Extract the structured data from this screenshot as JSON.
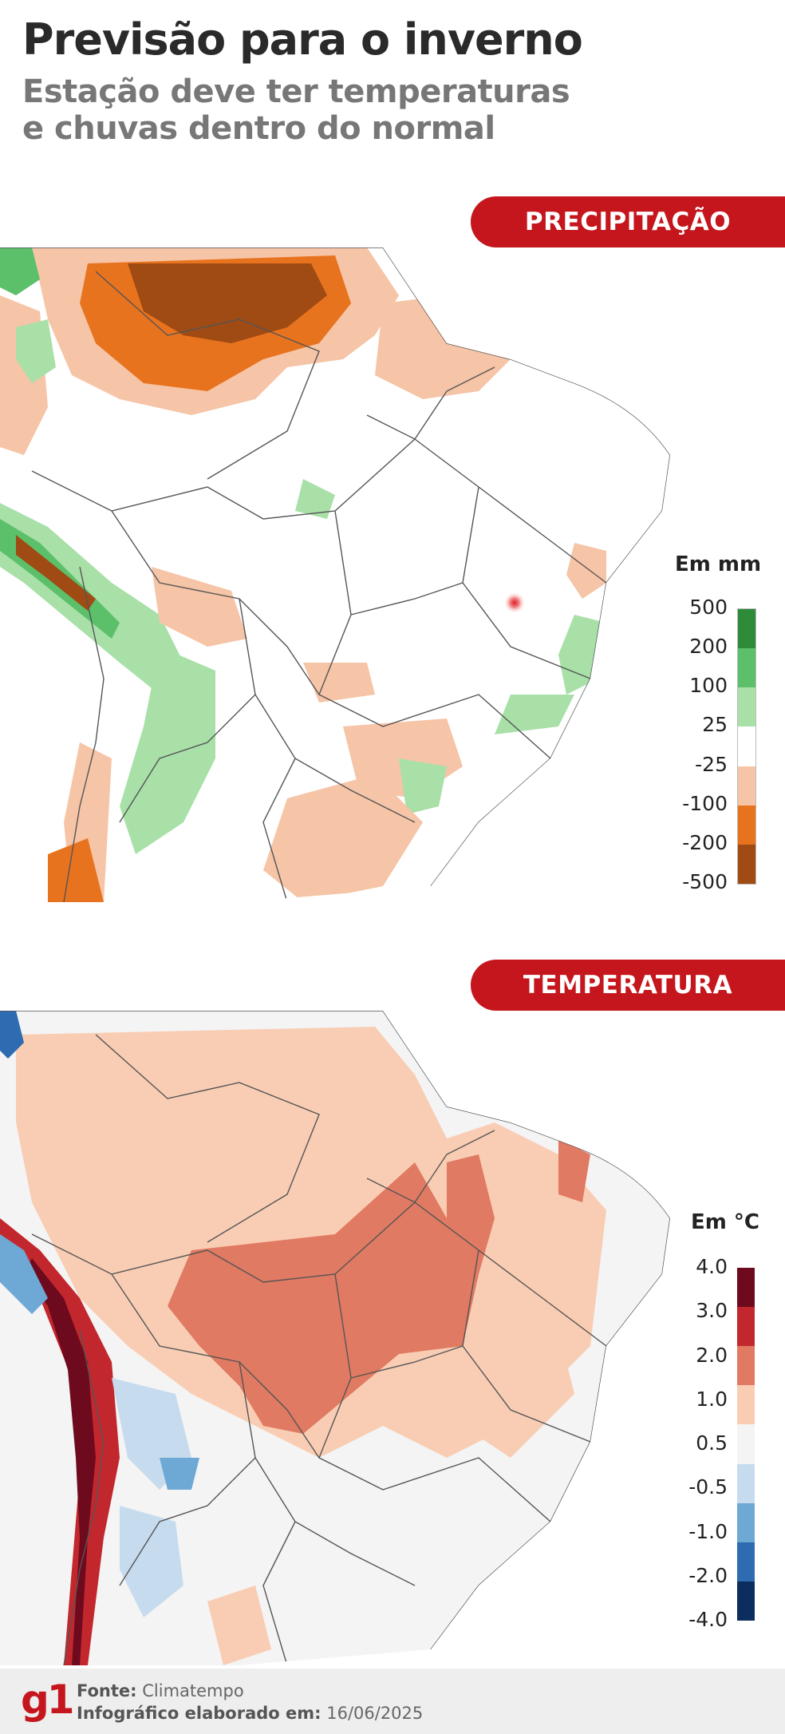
{
  "header": {
    "title": "Previsão para o inverno",
    "subtitle": "Estação deve ter temperaturas e chuvas dentro do normal"
  },
  "precipitation": {
    "banner": "PRECIPITAÇÃO",
    "legend_title": "Em mm",
    "legend_ticks": [
      "500",
      "200",
      "100",
      "25",
      "-25",
      "-100",
      "-200",
      "-500"
    ],
    "legend_colors": [
      "#2e8b3a",
      "#5cc06a",
      "#a8e0a8",
      "#ffffff",
      "#f6c4a6",
      "#e8731e",
      "#a04a14"
    ]
  },
  "temperature": {
    "banner": "TEMPERATURA",
    "legend_title": "Em °C",
    "legend_ticks": [
      "4.0",
      "3.0",
      "2.0",
      "1.0",
      "0.5",
      "-0.5",
      "-1.0",
      "-2.0",
      "-4.0"
    ],
    "legend_colors": [
      "#6e0a1e",
      "#c2272d",
      "#e07a62",
      "#f9cdb4",
      "#f4f4f4",
      "#c6dcee",
      "#6ea8d4",
      "#2f6bb0",
      "#0b2e5e"
    ]
  },
  "footer": {
    "logo": "g1",
    "source_label": "Fonte:",
    "source_value": "Climatempo",
    "date_label": "Infográfico elaborado em:",
    "date_value": "16/06/2025"
  }
}
